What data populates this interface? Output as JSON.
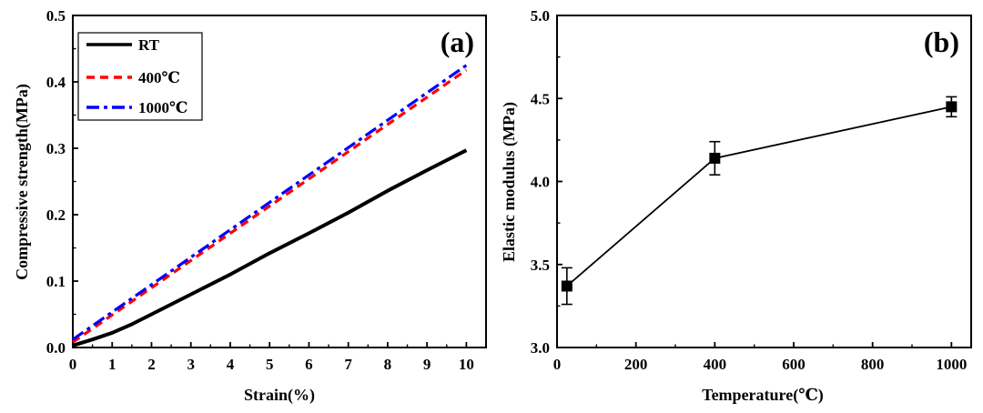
{
  "chart_data": [
    {
      "type": "line",
      "panel_label": "(a)",
      "xlabel": "Strain(%)",
      "ylabel": "Compressive strength(MPa)",
      "xlim": [
        0,
        10.5
      ],
      "ylim": [
        0,
        0.5
      ],
      "xticks": [
        "0",
        "1",
        "2",
        "3",
        "4",
        "5",
        "6",
        "7",
        "8",
        "9",
        "10"
      ],
      "yticks": [
        "0.0",
        "0.1",
        "0.2",
        "0.3",
        "0.4",
        "0.5"
      ],
      "legend_position": "top-left",
      "series": [
        {
          "name": "RT",
          "color": "#000000",
          "style": "solid",
          "x": [
            0,
            0.5,
            1,
            1.5,
            2,
            3,
            4,
            5,
            6,
            7,
            8,
            9,
            10
          ],
          "y": [
            0.003,
            0.012,
            0.022,
            0.035,
            0.05,
            0.08,
            0.11,
            0.142,
            0.172,
            0.203,
            0.236,
            0.267,
            0.297
          ]
        },
        {
          "name": "400℃",
          "color": "#ff0000",
          "style": "dashed",
          "x": [
            0,
            10
          ],
          "y": [
            0.008,
            0.418
          ]
        },
        {
          "name": "1000℃",
          "color": "#0000ff",
          "style": "dashdot",
          "x": [
            0,
            10
          ],
          "y": [
            0.012,
            0.425
          ]
        }
      ]
    },
    {
      "type": "line",
      "panel_label": "(b)",
      "xlabel": "Temperature(℃)",
      "ylabel": "Elastic modulus (MPa)",
      "xlim": [
        0,
        1050
      ],
      "ylim": [
        3.0,
        5.0
      ],
      "xticks": [
        "0",
        "200",
        "400",
        "600",
        "800",
        "1000"
      ],
      "yticks": [
        "3.0",
        "3.5",
        "4.0",
        "4.5",
        "5.0"
      ],
      "series": [
        {
          "name": "Elastic modulus",
          "color": "#000000",
          "marker": "square",
          "x": [
            25,
            400,
            1000
          ],
          "y": [
            3.37,
            4.14,
            4.45
          ],
          "error": [
            0.11,
            0.1,
            0.06
          ]
        }
      ]
    }
  ]
}
